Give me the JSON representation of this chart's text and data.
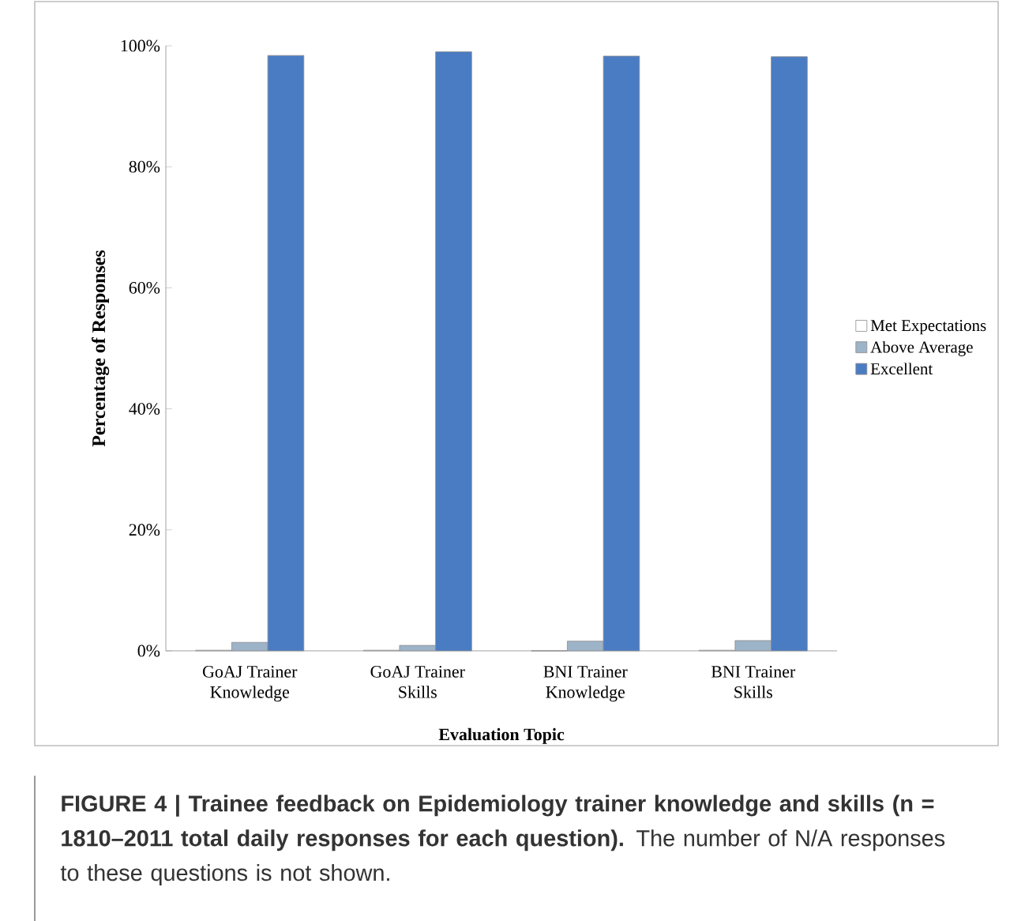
{
  "chart_data": {
    "type": "bar",
    "xlabel": "Evaluation Topic",
    "ylabel": "Percentage of Responses",
    "categories": [
      "GoAJ Trainer Knowledge",
      "GoAJ Trainer Skills",
      "BNI Trainer Knowledge",
      "BNI Trainer Skills"
    ],
    "series": [
      {
        "name": "Met Expectations",
        "color": "#ffffff",
        "values": [
          0.1,
          0.1,
          0,
          0.1
        ]
      },
      {
        "name": "Above Average",
        "color": "#9db3c8",
        "values": [
          1.4,
          0.9,
          1.6,
          1.7
        ]
      },
      {
        "name": "Excellent",
        "color": "#4a7cc4",
        "values": [
          98.4,
          99.0,
          98.3,
          98.2
        ]
      }
    ],
    "ylim": [
      0,
      100
    ],
    "yticks": [
      {
        "value": 0,
        "label": "0%"
      },
      {
        "value": 20,
        "label": "20%"
      },
      {
        "value": 40,
        "label": "40%"
      },
      {
        "value": 60,
        "label": "60%"
      },
      {
        "value": 80,
        "label": "80%"
      },
      {
        "value": 100,
        "label": "100%"
      }
    ],
    "grid": false,
    "legend": "right",
    "annotations": [
      "**FIGURE 4 | Trainee feedback on Epidemiology trainer knowledge and skills (n = 1810–2011 total daily responses for each question).** The number of N/A responses to these questions is not shown."
    ]
  }
}
